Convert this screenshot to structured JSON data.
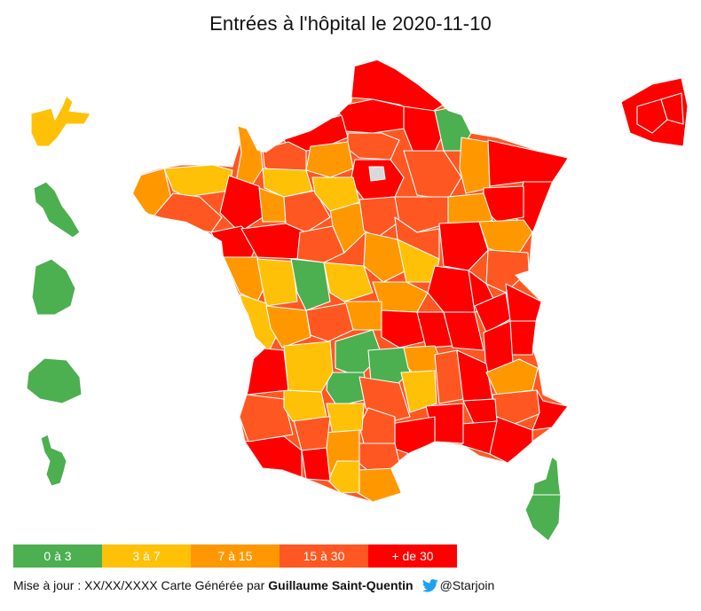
{
  "title": "Entrées à l'hôpital le 2020-11-10",
  "colors": {
    "c0": "#4caf50",
    "c1": "#ffc107",
    "c2": "#ff9800",
    "c3": "#ff5722",
    "c4": "#ff0000",
    "nodata": "#d9d9d9"
  },
  "legend": [
    {
      "label": "0 à 3",
      "color": "#4caf50"
    },
    {
      "label": "3 à 7",
      "color": "#ffc107"
    },
    {
      "label": "7 à 15",
      "color": "#ff9800"
    },
    {
      "label": "15 à 30",
      "color": "#ff5722"
    },
    {
      "label": "+ de 30",
      "color": "#ff0000"
    }
  ],
  "footer": {
    "update_text": "Mise à jour : XX/XX/XXXX Carte Générée par",
    "author": "Guillaume Saint-Quentin",
    "handle": "@Starjoin",
    "twitter_icon": "twitter-bird-icon"
  },
  "territories": {
    "guadeloupe": "3 à 7",
    "martinique": "0 à 3",
    "guyane": "0 à 3",
    "reunion": "0 à 3",
    "mayotte": "0 à 3",
    "ile_de_france": "+ de 30"
  }
}
